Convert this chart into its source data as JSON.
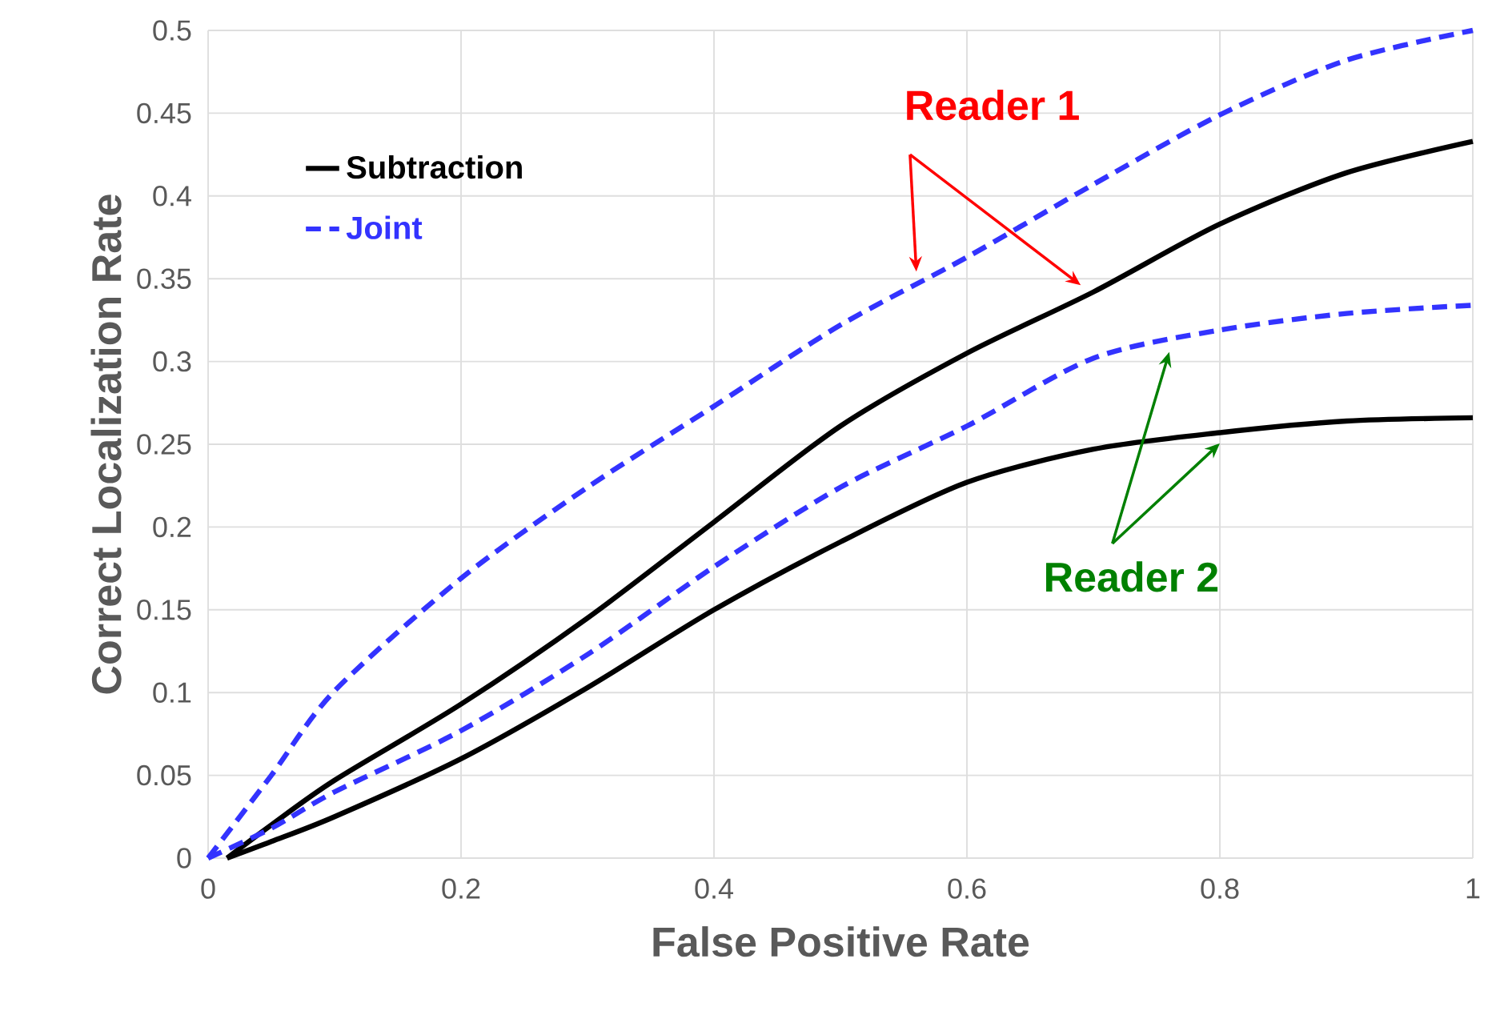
{
  "chart_data": {
    "type": "line",
    "xlabel": "False Positive Rate",
    "ylabel": "Correct Localization Rate",
    "x": [
      0,
      0.05,
      0.1,
      0.2,
      0.3,
      0.4,
      0.5,
      0.6,
      0.7,
      0.8,
      0.9,
      1.0
    ],
    "series": [
      {
        "name": "Subtraction",
        "color": "#000000",
        "line_style": "solid",
        "x": [
          0.015,
          0.05,
          0.1,
          0.2,
          0.3,
          0.4,
          0.5,
          0.6,
          0.7,
          0.8,
          0.9,
          1.0
        ],
        "values": [
          0,
          0.02,
          0.047,
          0.093,
          0.145,
          0.203,
          0.261,
          0.305,
          0.342,
          0.383,
          0.414,
          0.433
        ]
      },
      {
        "name": "Joint",
        "color": "#3333ff",
        "line_style": "dashed",
        "values": [
          0,
          0.05,
          0.101,
          0.169,
          0.224,
          0.273,
          0.322,
          0.363,
          0.407,
          0.449,
          0.482,
          0.5
        ]
      },
      {
        "color": "#000000",
        "line_style": "solid",
        "x": [
          0.015,
          0.05,
          0.1,
          0.2,
          0.3,
          0.4,
          0.5,
          0.6,
          0.7,
          0.8,
          0.9,
          1.0
        ],
        "values": [
          0,
          0.01,
          0.025,
          0.06,
          0.103,
          0.15,
          0.191,
          0.227,
          0.247,
          0.257,
          0.264,
          0.266
        ]
      },
      {
        "color": "#3333ff",
        "line_style": "dashed",
        "values": [
          0,
          0.018,
          0.04,
          0.077,
          0.123,
          0.176,
          0.224,
          0.261,
          0.302,
          0.319,
          0.329,
          0.334
        ]
      }
    ],
    "annotations": [
      "Reader 1",
      "Reader 2"
    ],
    "xlim": [
      0,
      1
    ],
    "ylim": [
      0,
      0.5
    ],
    "xticks": [
      0,
      0.2,
      0.4,
      0.6,
      0.8,
      1
    ],
    "yticks": [
      0,
      0.05,
      0.1,
      0.15,
      0.2,
      0.25,
      0.3,
      0.35,
      0.4,
      0.45,
      0.5
    ],
    "grid": true,
    "legend": "top left"
  }
}
